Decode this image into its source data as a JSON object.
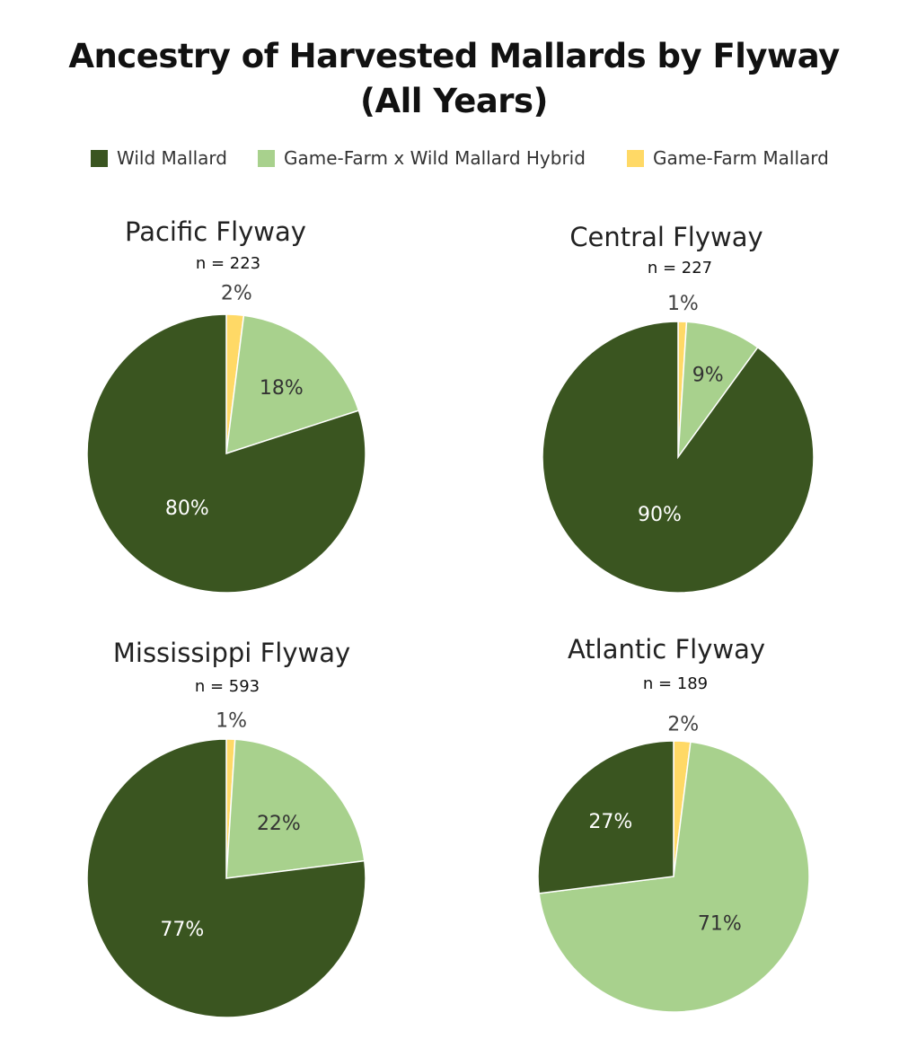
{
  "title_line1": "Ancestry of Harvested Mallards by Flyway",
  "title_line2": "(All Years)",
  "legend": [
    {
      "label": "Wild Mallard",
      "color": "#3a5520"
    },
    {
      "label": "Game-Farm x Wild Mallard Hybrid",
      "color": "#a8d18d"
    },
    {
      "label": "Game-Farm Mallard",
      "color": "#ffd966"
    }
  ],
  "chart_data": [
    {
      "type": "pie",
      "title": "Pacific Flyway",
      "subtitle": "n = 223",
      "slices": [
        {
          "label": "Game-Farm Mallard",
          "value": 2,
          "text": "2%"
        },
        {
          "label": "Game-Farm x Wild Mallard Hybrid",
          "value": 18,
          "text": "18%"
        },
        {
          "label": "Wild Mallard",
          "value": 80,
          "text": "80%"
        }
      ]
    },
    {
      "type": "pie",
      "title": "Central Flyway",
      "subtitle": "n = 227",
      "slices": [
        {
          "label": "Game-Farm Mallard",
          "value": 1,
          "text": "1%"
        },
        {
          "label": "Game-Farm x Wild Mallard Hybrid",
          "value": 9,
          "text": "9%"
        },
        {
          "label": "Wild Mallard",
          "value": 90,
          "text": "90%"
        }
      ]
    },
    {
      "type": "pie",
      "title": "Mississippi Flyway",
      "subtitle": "n = 593",
      "slices": [
        {
          "label": "Game-Farm Mallard",
          "value": 1,
          "text": "1%"
        },
        {
          "label": "Game-Farm x Wild Mallard Hybrid",
          "value": 22,
          "text": "22%"
        },
        {
          "label": "Wild Mallard",
          "value": 77,
          "text": "77%"
        }
      ]
    },
    {
      "type": "pie",
      "title": "Atlantic Flyway",
      "subtitle": "n = 189",
      "slices": [
        {
          "label": "Game-Farm Mallard",
          "value": 2,
          "text": "2%"
        },
        {
          "label": "Game-Farm x Wild Mallard Hybrid",
          "value": 71,
          "text": "71%"
        },
        {
          "label": "Wild Mallard",
          "value": 27,
          "text": "27%"
        }
      ]
    }
  ]
}
